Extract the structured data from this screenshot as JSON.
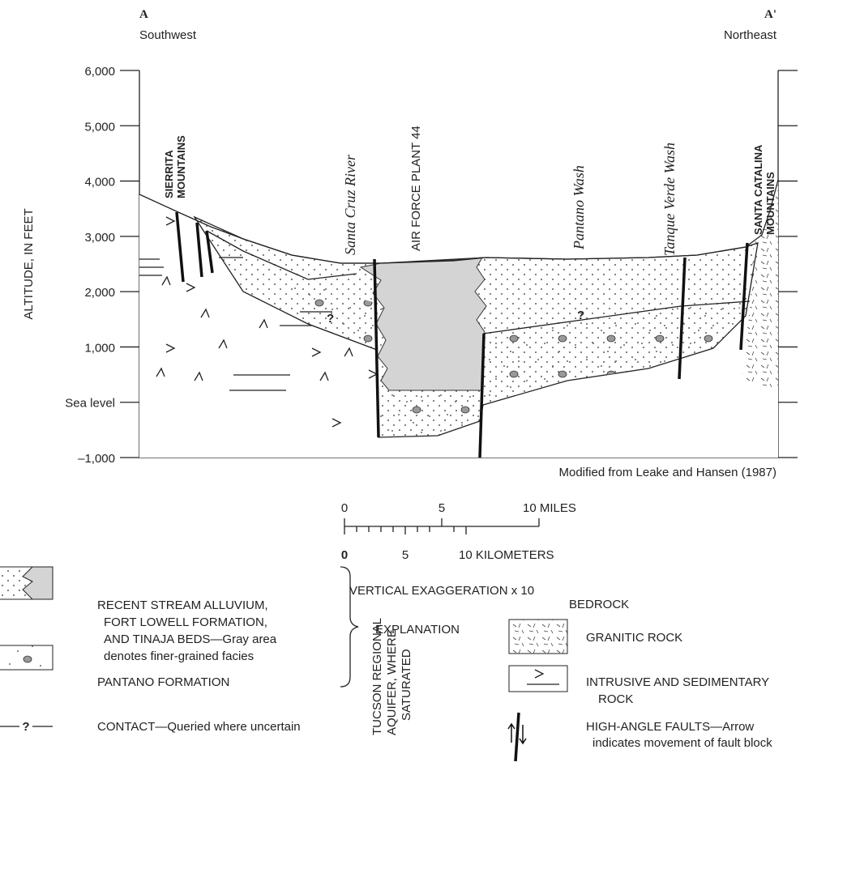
{
  "header": {
    "left_label": "A",
    "left_direction": "Southwest",
    "right_label": "A'",
    "right_direction": "Northeast"
  },
  "axis": {
    "title": "ALTITUDE, IN FEET",
    "ticks": [
      "6,000",
      "5,000",
      "4,000",
      "3,000",
      "2,000",
      "1,000",
      "Sea level",
      "–1,000"
    ]
  },
  "section": {
    "sierrita": [
      "SIERRITA",
      "MOUNTAINS"
    ],
    "santa_cruz": "Santa Cruz River",
    "air_force": "AIR FORCE PLANT 44",
    "pantano_wash": "Pantano Wash",
    "tanque_verde": "Tanque Verde Wash",
    "catalina": [
      "SANTA CATALINA",
      "MOUNTAINS"
    ],
    "query_marks": [
      "?",
      "?"
    ],
    "source": "Modified from Leake and Hansen (1987)"
  },
  "scale": {
    "miles": [
      "0",
      "5",
      "10 MILES"
    ],
    "kilometers": [
      "0",
      "5",
      "10 KILOMETERS"
    ],
    "exaggeration": "VERTICAL EXAGGERATION x 10"
  },
  "explanation": {
    "title": "EXPLANATION",
    "alluvium": [
      "RECENT STREAM ALLUVIUM,",
      "FORT LOWELL FORMATION,",
      "AND TINAJA BEDS—Gray area",
      "denotes finer-grained facies"
    ],
    "pantano": "PANTANO FORMATION",
    "contact_symbol": "?",
    "contact": "CONTACT—Queried where uncertain",
    "aquifer": [
      "TUCSON REGIONAL",
      "AQUIFER, WHERE",
      "SATURATED"
    ],
    "bedrock": "BEDROCK",
    "granitic": "GRANITIC ROCK",
    "intrusive": [
      "INTRUSIVE AND SEDIMENTARY",
      "ROCK"
    ],
    "faults": [
      "HIGH-ANGLE FAULTS—Arrow",
      "indicates movement of fault block"
    ]
  }
}
